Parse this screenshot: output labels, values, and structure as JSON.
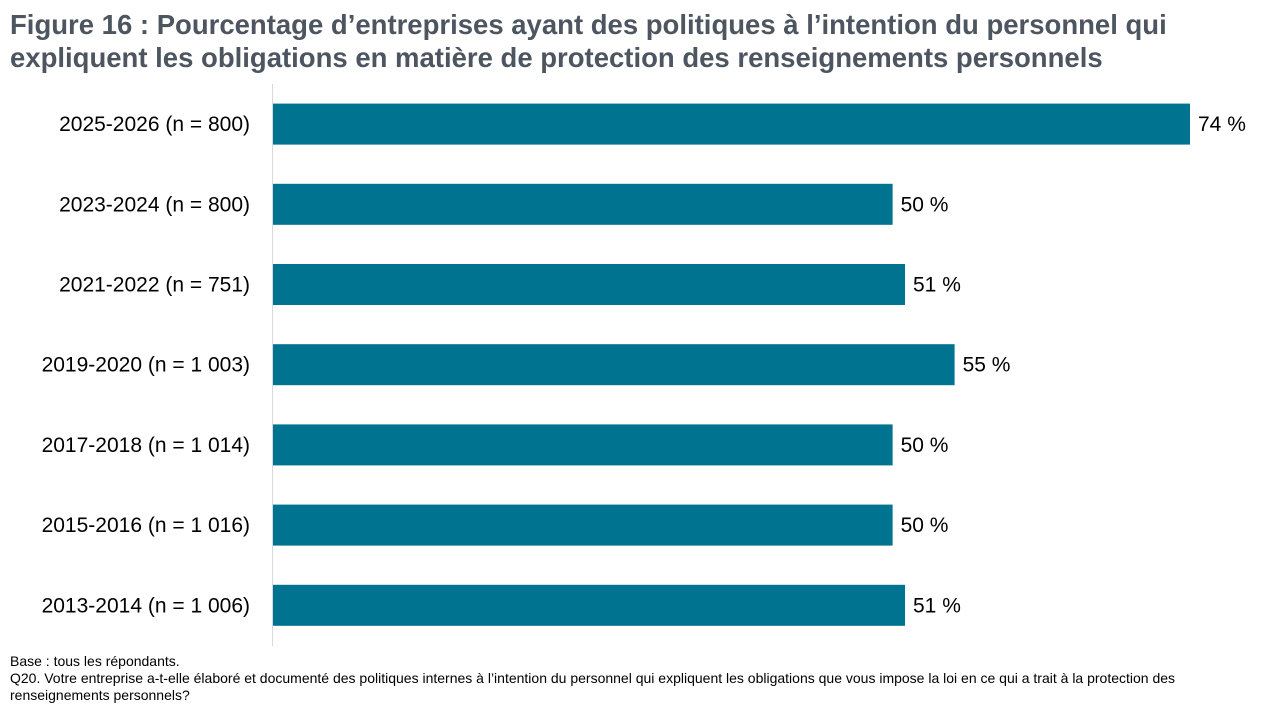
{
  "title": "Figure 16 : Pourcentage d’entreprises ayant des politiques à l’intention du personnel qui expliquent les obligations en matière de protection des renseignements personnels",
  "notes": {
    "base": "Base : tous les répondants.",
    "question": "Q20. Votre entreprise a-t-elle élaboré et documenté des politiques internes à l’intention du personnel qui expliquent les obligations que vous impose la loi en ce qui a trait à la protection des renseignements personnels?"
  },
  "colors": {
    "bar": "#007391",
    "title": "#4d5660",
    "axis": "#d9d9d9"
  },
  "chart_data": {
    "type": "bar",
    "orientation": "horizontal",
    "categories": [
      "2025-2026 (n = 800)",
      "2023-2024 (n = 800)",
      "2021-2022 (n = 751)",
      "2019-2020 (n = 1 003)",
      "2017-2018 (n = 1 014)",
      "2015-2016 (n = 1 016)",
      "2013-2014 (n = 1 006)"
    ],
    "values": [
      74,
      50,
      51,
      55,
      50,
      50,
      51
    ],
    "data_labels": [
      "74 %",
      "50 %",
      "51 %",
      "55 %",
      "50 %",
      "50 %",
      "51 %"
    ],
    "xlim": [
      0,
      74
    ],
    "grid": false,
    "legend": "none"
  }
}
